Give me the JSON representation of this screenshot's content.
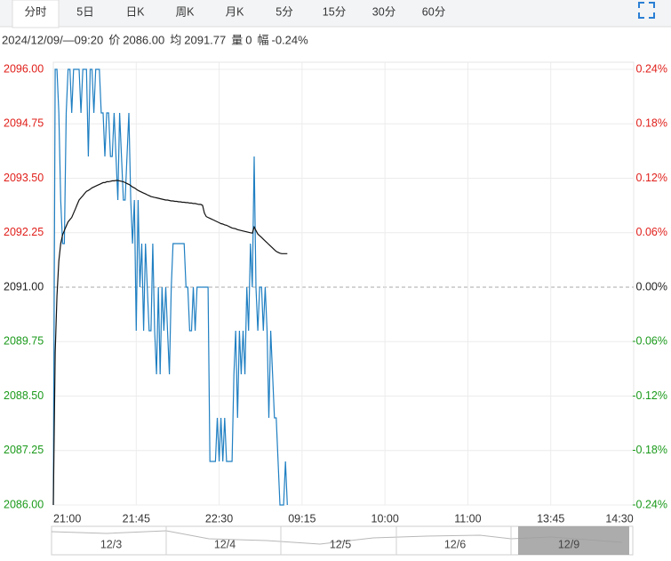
{
  "tabs": [
    "分时",
    "5日",
    "日K",
    "周K",
    "月K",
    "5分",
    "15分",
    "30分",
    "60分"
  ],
  "info": {
    "datetime": "2024/12/09/—09:20",
    "price_label": "价",
    "price": "2086.00",
    "avg_label": "均",
    "avg": "2091.77",
    "volume_label": "量",
    "volume": "0",
    "change_label": "幅",
    "change": "-0.24%"
  },
  "chart_data": {
    "type": "line",
    "xlim": [
      0,
      315
    ],
    "xticks": [
      {
        "value": 0,
        "label": "21:00"
      },
      {
        "value": 45,
        "label": "21:45"
      },
      {
        "value": 90,
        "label": "22:30"
      },
      {
        "value": 135,
        "label": "09:15"
      },
      {
        "value": 180,
        "label": "10:00"
      },
      {
        "value": 225,
        "label": "11:00"
      },
      {
        "value": 270,
        "label": "13:45"
      },
      {
        "value": 315,
        "label": "14:30"
      }
    ],
    "ylim": [
      2086,
      2096
    ],
    "yticks": [
      {
        "value": 2096,
        "label": "2096.00"
      },
      {
        "value": 2094.75,
        "label": "2094.75"
      },
      {
        "value": 2093.5,
        "label": "2093.50"
      },
      {
        "value": 2092.25,
        "label": "2092.25"
      },
      {
        "value": 2091,
        "label": "2091.00"
      },
      {
        "value": 2089.75,
        "label": "2089.75"
      },
      {
        "value": 2088.5,
        "label": "2088.50"
      },
      {
        "value": 2087.25,
        "label": "2087.25"
      },
      {
        "value": 2086,
        "label": "2086.00"
      }
    ],
    "y2lim": [
      -0.24,
      0.24
    ],
    "y2ticks": [
      {
        "value": 0.24,
        "label": "0.24%"
      },
      {
        "value": 0.18,
        "label": "0.18%"
      },
      {
        "value": 0.12,
        "label": "0.12%"
      },
      {
        "value": 0.06,
        "label": "0.06%"
      },
      {
        "value": 0,
        "label": "0.00%"
      },
      {
        "value": -0.06,
        "label": "-0.06%"
      },
      {
        "value": -0.12,
        "label": "-0.12%"
      },
      {
        "value": -0.18,
        "label": "-0.18%"
      },
      {
        "value": -0.24,
        "label": "-0.24%"
      }
    ],
    "reference": 2091,
    "up_color": "#e0201b",
    "down_color": "#1b9a1b",
    "grid": true,
    "series": [
      {
        "color": "#1f7fc2",
        "values": [
          2086,
          2096,
          2096,
          2095,
          2093,
          2092,
          2092,
          2095,
          2096,
          2096,
          2095,
          2096,
          2096,
          2096,
          2096,
          2095,
          2096,
          2096,
          2096,
          2094,
          2096,
          2096,
          2095,
          2096,
          2096,
          2096,
          2095,
          2095,
          2094,
          2095,
          2095,
          2094,
          2094,
          2095,
          2094,
          2093,
          2095,
          2094,
          2093,
          2093,
          2094,
          2095,
          2093,
          2092,
          2093,
          2090,
          2093,
          2091,
          2092,
          2090,
          2092,
          2091,
          2090,
          2090,
          2092,
          2090,
          2089,
          2091,
          2089,
          2091,
          2090,
          2091,
          2090,
          2089,
          2091,
          2092,
          2092,
          2092,
          2092,
          2092,
          2092,
          2092,
          2091,
          2091,
          2090,
          2090,
          2091,
          2090,
          2091,
          2091,
          2091,
          2091,
          2091,
          2091,
          2091,
          2087,
          2087,
          2087,
          2087,
          2088,
          2087,
          2088,
          2087,
          2088,
          2087,
          2087,
          2087,
          2087,
          2089,
          2090,
          2088,
          2090,
          2089,
          2090,
          2089,
          2091,
          2090,
          2092,
          2091,
          2094,
          2091,
          2090,
          2091,
          2091,
          2090,
          2091,
          2090,
          2088,
          2090,
          2089,
          2088,
          2088,
          2087,
          2086,
          2086,
          2086,
          2087,
          2086
        ]
      },
      {
        "color": "#111111",
        "values": [
          2086.0,
          2089.5,
          2090.8,
          2091.6,
          2092.0,
          2092.2,
          2092.3,
          2092.4,
          2092.5,
          2092.55,
          2092.6,
          2092.7,
          2092.8,
          2092.9,
          2093.0,
          2093.05,
          2093.1,
          2093.15,
          2093.2,
          2093.22,
          2093.25,
          2093.28,
          2093.3,
          2093.32,
          2093.34,
          2093.36,
          2093.38,
          2093.4,
          2093.4,
          2093.42,
          2093.42,
          2093.43,
          2093.44,
          2093.44,
          2093.45,
          2093.45,
          2093.44,
          2093.43,
          2093.42,
          2093.4,
          2093.38,
          2093.36,
          2093.33,
          2093.3,
          2093.28,
          2093.25,
          2093.22,
          2093.2,
          2093.18,
          2093.16,
          2093.14,
          2093.12,
          2093.1,
          2093.08,
          2093.07,
          2093.06,
          2093.05,
          2093.04,
          2093.03,
          2093.02,
          2093.01,
          2093.0,
          2093.0,
          2092.99,
          2092.98,
          2092.98,
          2092.97,
          2092.97,
          2092.96,
          2092.96,
          2092.95,
          2092.95,
          2092.94,
          2092.94,
          2092.93,
          2092.93,
          2092.92,
          2092.92,
          2092.91,
          2092.9,
          2092.9,
          2092.88,
          2092.7,
          2092.62,
          2092.6,
          2092.58,
          2092.56,
          2092.54,
          2092.52,
          2092.5,
          2092.48,
          2092.46,
          2092.45,
          2092.43,
          2092.42,
          2092.4,
          2092.38,
          2092.36,
          2092.35,
          2092.34,
          2092.32,
          2092.31,
          2092.3,
          2092.29,
          2092.28,
          2092.27,
          2092.26,
          2092.25,
          2092.24,
          2092.38,
          2092.3,
          2092.22,
          2092.18,
          2092.14,
          2092.1,
          2092.06,
          2092.02,
          2091.98,
          2091.94,
          2091.9,
          2091.86,
          2091.82,
          2091.8,
          2091.78,
          2091.77,
          2091.77,
          2091.77,
          2091.77
        ]
      }
    ]
  },
  "navigator": {
    "labels": [
      "12/3",
      "12/4",
      "12/5",
      "12/6",
      "12/9"
    ]
  }
}
